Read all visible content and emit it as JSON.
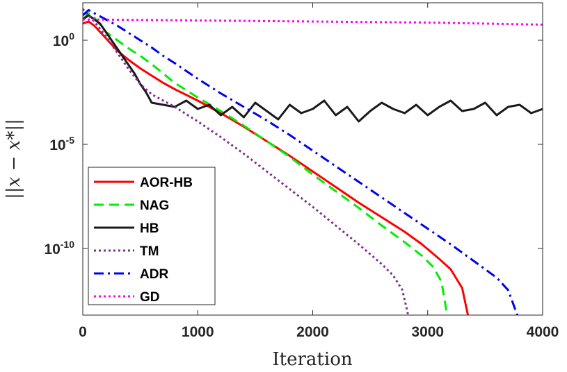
{
  "chart_data": {
    "type": "line",
    "title": "",
    "xlabel": "Iteration",
    "ylabel": "||x − x*||",
    "xlim": [
      0,
      4000
    ],
    "ylim_log10": [
      -13.2,
      1.8
    ],
    "yscale": "log",
    "grid": false,
    "legend_position": "bottom-left",
    "xticks": [
      0,
      1000,
      2000,
      3000,
      4000
    ],
    "xtick_labels": [
      "0",
      "1000",
      "2000",
      "3000",
      "4000"
    ],
    "yticks_log10": [
      0,
      -5,
      -10
    ],
    "ytick_labels": [
      {
        "base": "10",
        "exp": "0"
      },
      {
        "base": "10",
        "exp": "-5"
      },
      {
        "base": "10",
        "exp": "-10"
      }
    ],
    "series": [
      {
        "name": "AOR-HB",
        "color": "#ff0000",
        "dash": "solid",
        "x": [
          0,
          50,
          100,
          200,
          300,
          400,
          500,
          600,
          700,
          800,
          1000,
          1200,
          1400,
          1600,
          1800,
          2000,
          2200,
          2400,
          2600,
          2800,
          2950,
          3100,
          3200,
          3300,
          3350
        ],
        "log10_y": [
          0.8,
          0.9,
          0.7,
          0.1,
          -0.5,
          -0.95,
          -1.35,
          -1.7,
          -2.05,
          -2.35,
          -2.9,
          -3.5,
          -4.15,
          -4.85,
          -5.55,
          -6.3,
          -7.05,
          -7.8,
          -8.5,
          -9.2,
          -9.8,
          -10.5,
          -11.0,
          -11.9,
          -13.2
        ]
      },
      {
        "name": "NAG",
        "color": "#00ee00",
        "dash": "dashed",
        "x": [
          0,
          50,
          100,
          200,
          300,
          400,
          500,
          600,
          700,
          800,
          1000,
          1200,
          1400,
          1600,
          1800,
          2000,
          2200,
          2400,
          2600,
          2800,
          2950,
          3050,
          3120,
          3170
        ],
        "log10_y": [
          1.0,
          1.3,
          1.1,
          0.4,
          0.0,
          -0.4,
          -0.75,
          -1.15,
          -1.6,
          -2.05,
          -2.75,
          -3.4,
          -4.1,
          -4.85,
          -5.6,
          -6.45,
          -7.25,
          -8.05,
          -8.9,
          -9.7,
          -10.35,
          -10.9,
          -11.6,
          -13.2
        ]
      },
      {
        "name": "HB",
        "color": "#1a1a1a",
        "dash": "solid",
        "x": [
          0,
          50,
          100,
          150,
          200,
          250,
          300,
          350,
          400,
          450,
          500,
          550,
          600,
          700,
          800,
          900,
          1000,
          1100,
          1200,
          1300,
          1400,
          1500,
          1600,
          1700,
          1800,
          1900,
          2000,
          2100,
          2200,
          2300,
          2400,
          2500,
          2600,
          2700,
          2800,
          2900,
          3000,
          3100,
          3200,
          3300,
          3400,
          3500,
          3600,
          3700,
          3800,
          3900,
          4000
        ],
        "log10_y": [
          1.0,
          1.2,
          1.0,
          0.8,
          0.4,
          0.0,
          -0.4,
          -0.8,
          -1.2,
          -1.6,
          -2.1,
          -2.5,
          -3.0,
          -3.1,
          -3.2,
          -2.9,
          -3.3,
          -3.1,
          -3.6,
          -3.2,
          -3.7,
          -3.0,
          -3.4,
          -3.8,
          -3.1,
          -3.5,
          -3.3,
          -2.9,
          -3.6,
          -3.2,
          -3.9,
          -3.4,
          -3.0,
          -3.3,
          -3.5,
          -3.1,
          -3.6,
          -3.2,
          -2.9,
          -3.4,
          -3.3,
          -3.0,
          -3.6,
          -3.2,
          -3.1,
          -3.5,
          -3.3
        ]
      },
      {
        "name": "TM",
        "color": "#7e2f8e",
        "dash": "dotted",
        "x": [
          0,
          50,
          100,
          200,
          300,
          400,
          500,
          600,
          700,
          800,
          1000,
          1200,
          1400,
          1600,
          1800,
          2000,
          2200,
          2400,
          2600,
          2700,
          2780,
          2830
        ],
        "log10_y": [
          1.5,
          1.2,
          0.9,
          0.2,
          -0.6,
          -1.4,
          -2.1,
          -2.6,
          -2.9,
          -3.2,
          -3.9,
          -4.65,
          -5.45,
          -6.3,
          -7.15,
          -8.0,
          -8.9,
          -9.8,
          -10.75,
          -11.3,
          -12.0,
          -13.2
        ]
      },
      {
        "name": "ADR",
        "color": "#0000ee",
        "dash": "dashdot",
        "x": [
          0,
          50,
          100,
          200,
          300,
          400,
          500,
          600,
          700,
          800,
          1000,
          1200,
          1400,
          1600,
          1800,
          2000,
          2200,
          2400,
          2600,
          2800,
          3000,
          3200,
          3400,
          3600,
          3700,
          3780
        ],
        "log10_y": [
          1.2,
          1.45,
          1.3,
          1.0,
          0.7,
          0.35,
          0.0,
          -0.35,
          -0.75,
          -1.1,
          -1.85,
          -2.55,
          -3.2,
          -3.85,
          -4.55,
          -5.3,
          -6.05,
          -6.8,
          -7.55,
          -8.3,
          -9.05,
          -9.8,
          -10.6,
          -11.4,
          -12.0,
          -13.2
        ]
      },
      {
        "name": "GD",
        "color": "#ff00ff",
        "dash": "dotted",
        "x": [
          0,
          1000,
          2000,
          3000,
          4000
        ],
        "log10_y": [
          1.0,
          0.95,
          0.9,
          0.85,
          0.75
        ]
      }
    ]
  }
}
